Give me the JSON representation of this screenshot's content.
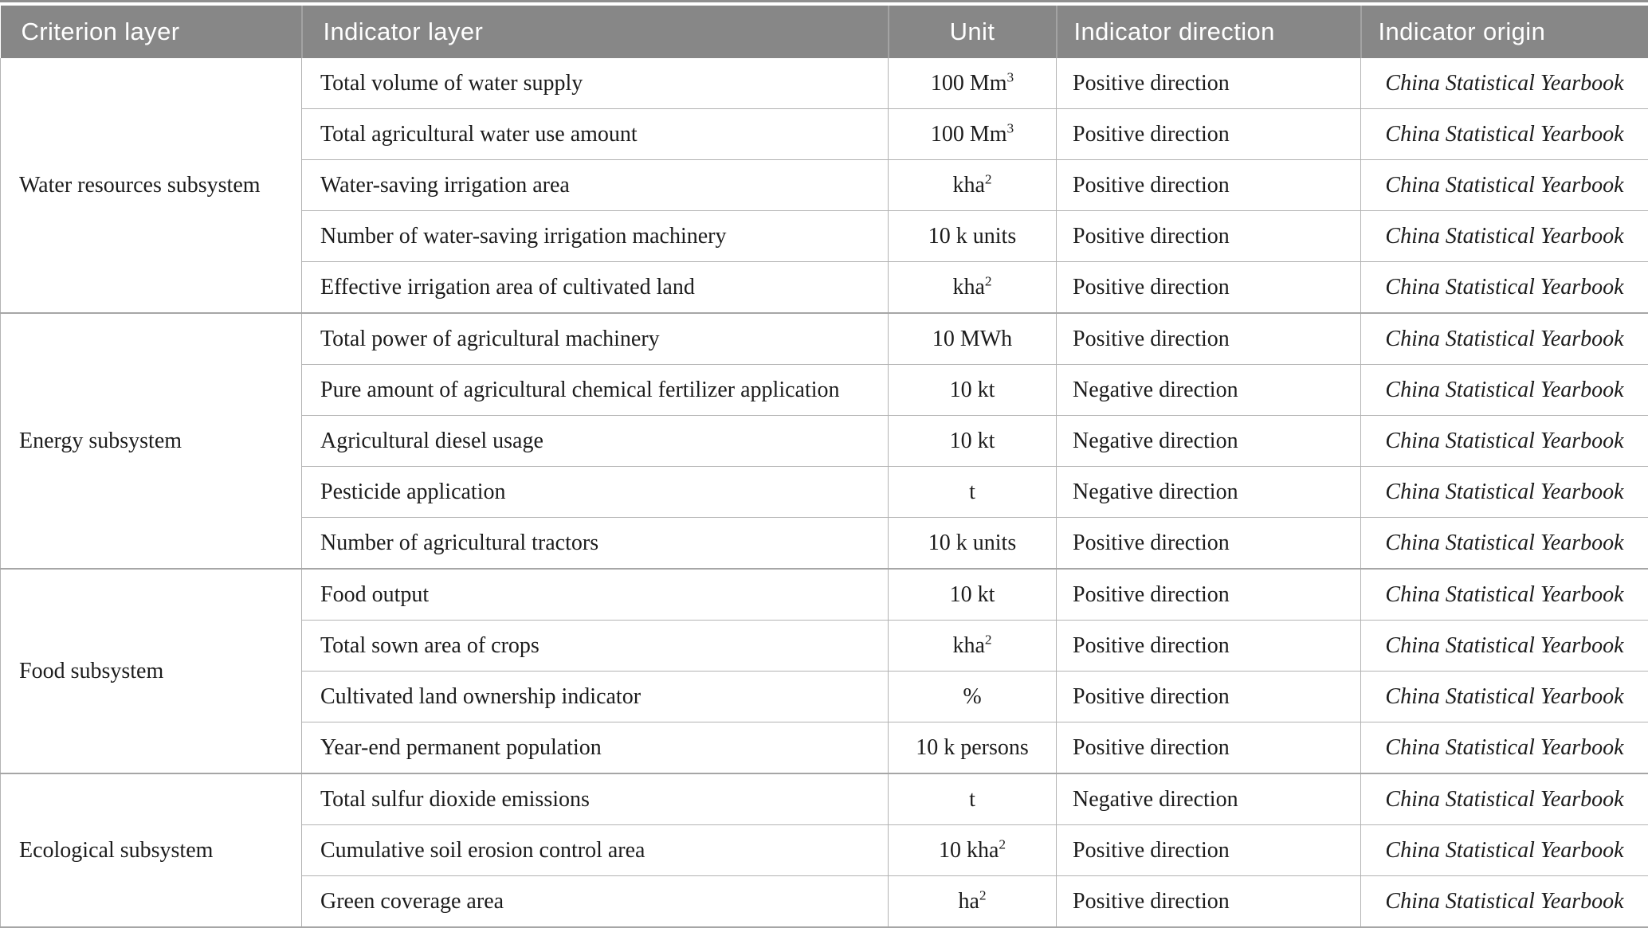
{
  "colors": {
    "header_bg": "#878787",
    "header_text": "#ffffff",
    "header_divider": "#a3a3a3",
    "top_rule": "#8f8f8f",
    "row_border": "#b3b3b3",
    "group_border": "#a6a6a6",
    "text": "#1c1c1c"
  },
  "header": {
    "columns": [
      {
        "label": "Criterion layer"
      },
      {
        "label": "Indicator layer"
      },
      {
        "label": "Unit"
      },
      {
        "label": "Indicator direction"
      },
      {
        "label": "Indicator origin"
      }
    ]
  },
  "table": {
    "groups": [
      {
        "criterion": "Water resources subsystem",
        "rows": [
          {
            "indicator": "Total volume of water supply",
            "unit": "100 Mm³",
            "direction": "Positive direction",
            "origin": "China Statistical Yearbook"
          },
          {
            "indicator": "Total agricultural water use amount",
            "unit": "100 Mm³",
            "direction": "Positive direction",
            "origin": "China Statistical Yearbook"
          },
          {
            "indicator": "Water-saving irrigation area",
            "unit": "kha²",
            "direction": "Positive direction",
            "origin": "China Statistical Yearbook"
          },
          {
            "indicator": "Number of water-saving irrigation machinery",
            "unit": "10 k units",
            "direction": "Positive direction",
            "origin": "China Statistical Yearbook"
          },
          {
            "indicator": "Effective irrigation area of cultivated land",
            "unit": "kha²",
            "direction": "Positive direction",
            "origin": "China Statistical Yearbook"
          }
        ]
      },
      {
        "criterion": "Energy subsystem",
        "rows": [
          {
            "indicator": "Total power of agricultural machinery",
            "unit": "10 MWh",
            "direction": "Positive direction",
            "origin": "China Statistical Yearbook"
          },
          {
            "indicator": "Pure amount of agricultural chemical fertilizer application",
            "unit": "10 kt",
            "direction": "Negative direction",
            "origin": "China Statistical Yearbook"
          },
          {
            "indicator": "Agricultural diesel usage",
            "unit": "10 kt",
            "direction": "Negative direction",
            "origin": "China Statistical Yearbook"
          },
          {
            "indicator": "Pesticide application",
            "unit": "t",
            "direction": "Negative direction",
            "origin": "China Statistical Yearbook"
          },
          {
            "indicator": "Number of agricultural tractors",
            "unit": "10 k units",
            "direction": "Positive direction",
            "origin": "China Statistical Yearbook"
          }
        ]
      },
      {
        "criterion": "Food subsystem",
        "rows": [
          {
            "indicator": "Food output",
            "unit": "10 kt",
            "direction": "Positive direction",
            "origin": "China Statistical Yearbook"
          },
          {
            "indicator": "Total sown area of crops",
            "unit": "kha²",
            "direction": "Positive direction",
            "origin": "China Statistical Yearbook"
          },
          {
            "indicator": "Cultivated land ownership indicator",
            "unit": "%",
            "direction": "Positive direction",
            "origin": "China Statistical Yearbook"
          },
          {
            "indicator": "Year-end permanent population",
            "unit": "10 k persons",
            "direction": "Positive direction",
            "origin": "China Statistical Yearbook"
          }
        ]
      },
      {
        "criterion": "Ecological subsystem",
        "rows": [
          {
            "indicator": "Total sulfur dioxide emissions",
            "unit": "t",
            "direction": "Negative direction",
            "origin": "China Statistical Yearbook"
          },
          {
            "indicator": "Cumulative soil erosion control area",
            "unit": "10 kha²",
            "direction": "Positive direction",
            "origin": "China Statistical Yearbook"
          },
          {
            "indicator": "Green coverage area",
            "unit": "ha²",
            "direction": "Positive direction",
            "origin": "China Statistical Yearbook"
          }
        ]
      }
    ]
  }
}
